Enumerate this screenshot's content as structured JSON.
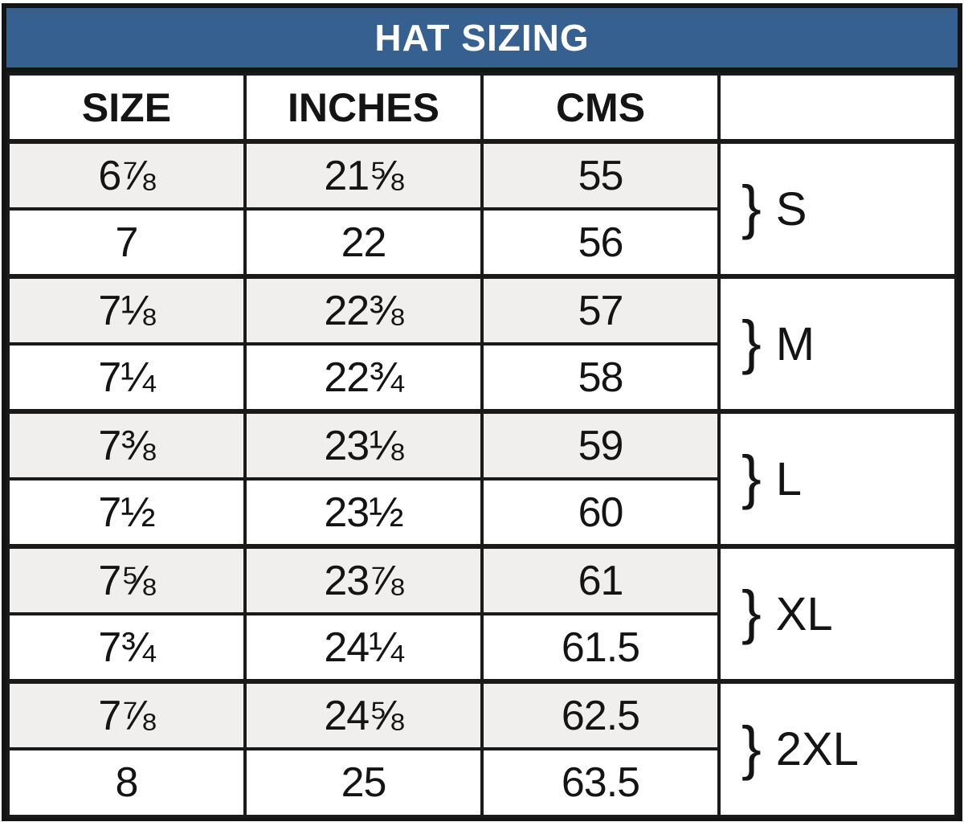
{
  "title": "HAT SIZING",
  "columns": [
    "SIZE",
    "INCHES",
    "CMS",
    ""
  ],
  "brace": "}",
  "rows": [
    {
      "size": "6⅞",
      "inches": "21⅝",
      "cms": "55"
    },
    {
      "size": "7",
      "inches": "22",
      "cms": "56"
    },
    {
      "size": "7⅛",
      "inches": "22⅜",
      "cms": "57"
    },
    {
      "size": "7¼",
      "inches": "22¾",
      "cms": "58"
    },
    {
      "size": "7⅜",
      "inches": "23⅛",
      "cms": "59"
    },
    {
      "size": "7½",
      "inches": "23½",
      "cms": "60"
    },
    {
      "size": "7⅝",
      "inches": "23⅞",
      "cms": "61"
    },
    {
      "size": "7¾",
      "inches": "24¼",
      "cms": "61.5"
    },
    {
      "size": "7⅞",
      "inches": "24⅝",
      "cms": "62.5"
    },
    {
      "size": "8",
      "inches": "25",
      "cms": "63.5"
    }
  ],
  "groups": [
    {
      "label": "S"
    },
    {
      "label": "M"
    },
    {
      "label": "L"
    },
    {
      "label": "XL"
    },
    {
      "label": "2XL"
    }
  ],
  "colors": {
    "header_bg": "#36608f",
    "header_text": "#ffffff",
    "row_alt_bg": "#f0efee",
    "row_bg": "#ffffff",
    "border": "#1a1a1a",
    "text": "#141414"
  }
}
